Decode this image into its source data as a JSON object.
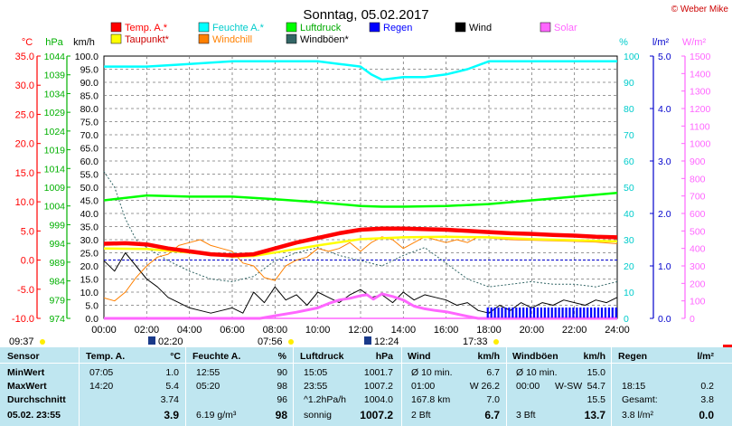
{
  "title": "Sonntag, 05.02.2017",
  "copyright": "© Weber Mike",
  "chart_data": {
    "type": "line",
    "x_ticks": [
      "00:00",
      "02:00",
      "04:00",
      "06:00",
      "08:00",
      "10:00",
      "12:00",
      "14:00",
      "16:00",
      "18:00",
      "20:00",
      "22:00",
      "24:00"
    ],
    "xlim": [
      0,
      24
    ],
    "axes": {
      "temp": {
        "label": "°C",
        "ticks": [
          "35.0",
          "30.0",
          "25.0",
          "20.0",
          "15.0",
          "10.0",
          "5.0",
          "0.0",
          "-5.0",
          "-10.0"
        ],
        "range": [
          -10,
          35
        ],
        "color": "#ff0000"
      },
      "press": {
        "label": "hPa",
        "ticks": [
          "1044",
          "1039",
          "1034",
          "1029",
          "1024",
          "1019",
          "1014",
          "1009",
          "1004",
          "999",
          "994",
          "989",
          "984",
          "979",
          "974"
        ],
        "range": [
          974,
          1044
        ],
        "color": "#00b000"
      },
      "speed": {
        "label": "km/h",
        "ticks": [
          "100.0",
          "95.0",
          "90.0",
          "85.0",
          "80.0",
          "75.0",
          "70.0",
          "65.0",
          "60.0",
          "55.0",
          "50.0",
          "45.0",
          "40.0",
          "35.0",
          "30.0",
          "25.0",
          "20.0",
          "15.0",
          "10.0",
          "5.0",
          "0.0"
        ],
        "range": [
          0,
          100
        ],
        "color": "#000000"
      },
      "humid": {
        "label": "%",
        "ticks": [
          "100",
          "90",
          "80",
          "70",
          "60",
          "50",
          "40",
          "30",
          "20",
          "10",
          "0"
        ],
        "range": [
          0,
          100
        ],
        "color": "#00cccc"
      },
      "rain": {
        "label": "l/m²",
        "ticks": [
          "5.0",
          "4.0",
          "3.0",
          "2.0",
          "1.0",
          "0.0"
        ],
        "range": [
          0,
          5
        ],
        "color": "#0000cc"
      },
      "solar": {
        "label": "W/m²",
        "ticks": [
          "1500",
          "1400",
          "1300",
          "1200",
          "1100",
          "1000",
          "900",
          "800",
          "700",
          "600",
          "500",
          "400",
          "300",
          "200",
          "100",
          "0"
        ],
        "range": [
          0,
          1500
        ],
        "color": "#ff66ff"
      }
    },
    "legend": [
      {
        "name": "Temp. A.*",
        "color": "#ff0000"
      },
      {
        "name": "Feuchte A.*",
        "color": "#00ffff"
      },
      {
        "name": "Luftdruck",
        "color": "#00ff00"
      },
      {
        "name": "Taupunkt*",
        "color": "#ffff00"
      },
      {
        "name": "Windchill",
        "color": "#ff8000"
      },
      {
        "name": "Windböen*",
        "color": "#336666"
      },
      {
        "name": "Regen",
        "color": "#0000ff"
      },
      {
        "name": "Wind",
        "color": "#000000"
      },
      {
        "name": "Solar",
        "color": "#ff66ff"
      }
    ],
    "series": [
      {
        "name": "Temp. A.*",
        "axis": "temp",
        "color": "#ff0000",
        "x": [
          0,
          1,
          2,
          3,
          4,
          5,
          6,
          7,
          8,
          9,
          10,
          11,
          12,
          13,
          14,
          15,
          16,
          17,
          18,
          19,
          20,
          21,
          22,
          23,
          24
        ],
        "values": [
          2.8,
          2.9,
          2.7,
          2.0,
          1.5,
          1.0,
          0.8,
          1.0,
          2.0,
          3.0,
          3.8,
          4.6,
          5.2,
          5.4,
          5.4,
          5.3,
          5.2,
          5.0,
          4.8,
          4.6,
          4.5,
          4.3,
          4.2,
          4.0,
          3.9
        ]
      },
      {
        "name": "Taupunkt*",
        "axis": "temp",
        "color": "#ffff00",
        "x": [
          0,
          2,
          4,
          6,
          7,
          8,
          10,
          12,
          14,
          16,
          18,
          20,
          22,
          24
        ],
        "values": [
          2.0,
          1.9,
          1.3,
          0.6,
          0.7,
          1.3,
          2.5,
          3.6,
          3.9,
          4.0,
          3.9,
          3.6,
          3.4,
          3.2
        ]
      },
      {
        "name": "Feuchte A.*",
        "axis": "humid",
        "color": "#00ffff",
        "x": [
          0,
          2,
          4,
          6,
          8,
          10,
          11,
          12,
          12.5,
          13,
          14,
          15,
          16,
          17,
          18,
          20,
          22,
          24
        ],
        "values": [
          96,
          96,
          97,
          98,
          98,
          98,
          97,
          96,
          93,
          91,
          92,
          92,
          93,
          95,
          98,
          98,
          98,
          98
        ]
      },
      {
        "name": "Luftdruck",
        "axis": "press",
        "color": "#00ff00",
        "x": [
          0,
          2,
          4,
          6,
          8,
          10,
          12,
          13,
          14,
          16,
          18,
          20,
          22,
          24
        ],
        "values": [
          1005.5,
          1006.8,
          1006.5,
          1006.5,
          1005.8,
          1005.0,
          1004.0,
          1003.8,
          1003.8,
          1004.0,
          1004.5,
          1005.5,
          1006.5,
          1007.5
        ]
      },
      {
        "name": "Windchill",
        "axis": "temp",
        "color": "#ff8000",
        "x": [
          0,
          0.5,
          1,
          1.5,
          2,
          2.5,
          3,
          3.5,
          4,
          4.5,
          5,
          5.5,
          6,
          6.5,
          7,
          7.5,
          8,
          8.5,
          9,
          9.5,
          10,
          10.5,
          11,
          11.5,
          12,
          12.5,
          13,
          13.5,
          14,
          14.5,
          15,
          15.5,
          16,
          16.5,
          17,
          17.5,
          18,
          19,
          20,
          21,
          22,
          23,
          24
        ],
        "values": [
          -6.5,
          -7,
          -5.5,
          -3,
          -1,
          0.5,
          1,
          2.5,
          3,
          3.5,
          2.5,
          2,
          1.5,
          -0.5,
          -1,
          -3,
          -3.5,
          -1,
          0,
          0.5,
          2,
          1.5,
          2,
          3,
          1.5,
          3,
          4,
          3.5,
          2,
          3,
          4,
          3.5,
          3,
          3.5,
          3,
          4,
          3.8,
          3.5,
          3.4,
          3.3,
          3.2,
          3.1,
          2.8
        ]
      },
      {
        "name": "Windböen*",
        "axis": "speed",
        "color": "#336666",
        "x": [
          0,
          0.5,
          1,
          1.5,
          2,
          3,
          4,
          5,
          6,
          7,
          8,
          9,
          10,
          11,
          12,
          13,
          14,
          15,
          16,
          17,
          18,
          19,
          20,
          21,
          22,
          23,
          24
        ],
        "values": [
          56,
          50,
          38,
          30,
          27,
          22,
          18,
          15,
          14,
          16,
          22,
          25,
          27,
          24,
          22,
          20,
          24,
          27,
          21,
          15,
          12,
          13,
          14,
          13,
          13,
          12,
          14
        ]
      },
      {
        "name": "Wind",
        "axis": "speed",
        "color": "#000000",
        "x": [
          0,
          0.5,
          1,
          1.5,
          2,
          2.5,
          3,
          3.5,
          4,
          4.5,
          5,
          5.5,
          6,
          6.5,
          7,
          7.5,
          8,
          8.5,
          9,
          9.5,
          10,
          10.5,
          11,
          11.5,
          12,
          12.5,
          13,
          13.5,
          14,
          14.5,
          15,
          15.5,
          16,
          16.5,
          17,
          17.5,
          18,
          18.5,
          19,
          19.5,
          20,
          20.5,
          21,
          21.5,
          22,
          22.5,
          23,
          23.5,
          24
        ],
        "values": [
          22,
          18,
          25,
          20,
          15,
          12,
          8,
          6,
          4,
          3,
          2,
          3,
          4,
          2,
          10,
          6,
          12,
          7,
          9,
          5,
          10,
          8,
          6,
          9,
          11,
          8,
          9,
          6,
          10,
          7,
          9,
          8,
          7,
          5,
          6,
          3,
          2,
          5,
          3,
          6,
          4,
          6,
          5,
          7,
          6,
          5,
          7,
          6,
          8
        ]
      },
      {
        "name": "Solar",
        "axis": "solar",
        "color": "#ff66ff",
        "x": [
          0,
          7.3,
          8,
          9,
          10,
          10.5,
          11,
          11.5,
          12,
          12.3,
          12.6,
          13,
          13.5,
          14,
          14.5,
          15,
          15.5,
          16,
          16.5,
          17,
          17.5,
          24
        ],
        "values": [
          0,
          0,
          15,
          35,
          60,
          85,
          105,
          115,
          130,
          135,
          110,
          140,
          125,
          105,
          70,
          55,
          45,
          38,
          25,
          12,
          0,
          0
        ]
      }
    ],
    "rain_bars_from": 17.9,
    "time_markers": [
      {
        "label": "09:37",
        "kind": "sunrise"
      },
      {
        "label": "02:20",
        "kind": "moonset"
      },
      {
        "label": "07:56",
        "kind": "sunrise"
      },
      {
        "label": "12:24",
        "kind": "moonrise"
      },
      {
        "label": "17:33",
        "kind": "sunset"
      }
    ]
  },
  "table": {
    "headers": [
      "Sensor",
      "Temp. A.",
      "°C",
      "Feuchte A.",
      "%",
      "Luftdruck",
      "hPa",
      "Wind",
      "km/h",
      "Windböen",
      "km/h",
      "Regen",
      "l/m²"
    ],
    "rows": [
      {
        "label": "MinWert",
        "temp_time": "07:05",
        "temp_val": "1.0",
        "hum_time": "12:55",
        "hum_val": "90",
        "press_time": "15:05",
        "press_val": "1001.7",
        "wind_a": "Ø 10 min.",
        "wind_val": "6.7",
        "gust_a": "Ø 10 min.",
        "gust_b": "",
        "gust_val": "15.0",
        "rain_a": "",
        "rain_val": ""
      },
      {
        "label": "MaxWert",
        "temp_time": "14:20",
        "temp_val": "5.4",
        "hum_time": "05:20",
        "hum_val": "98",
        "press_time": "23:55",
        "press_val": "1007.2",
        "wind_a": "01:00",
        "wind_val": "W 26.2",
        "gust_a": "00:00",
        "gust_b": "W-SW",
        "gust_val": "54.7",
        "rain_a": "18:15",
        "rain_val": "0.2"
      },
      {
        "label": "Durchschnitt",
        "temp_time": "",
        "temp_val": "3.74",
        "hum_time": "",
        "hum_val": "96",
        "press_time": "^1.2hPa/h",
        "press_val": "1004.0",
        "wind_a": "167.8 km",
        "wind_val": "7.0",
        "gust_a": "",
        "gust_b": "",
        "gust_val": "15.5",
        "rain_a": "Gesamt:",
        "rain_val": "3.8"
      },
      {
        "label": "05.02. 23:55",
        "temp_time": "",
        "temp_val": "3.9",
        "hum_time": "6.19 g/m³",
        "hum_val": "98",
        "press_time": "sonnig",
        "press_val": "1007.2",
        "wind_a": "2 Bft",
        "wind_val": "6.7",
        "gust_a": "3 Bft",
        "gust_b": "",
        "gust_val": "13.7",
        "rain_a": "3.8 l/m²",
        "rain_val": "0.0"
      }
    ]
  }
}
